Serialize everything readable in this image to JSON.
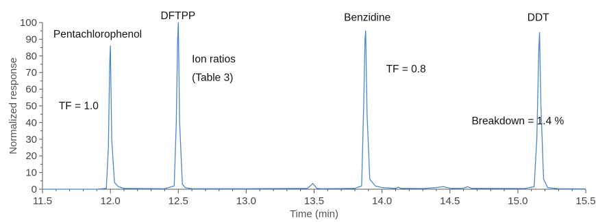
{
  "chart_data": {
    "type": "line",
    "xlabel": "Time (min)",
    "ylabel": "Normalized response",
    "xlim": [
      11.5,
      15.5
    ],
    "ylim": [
      0,
      100
    ],
    "xticks": [
      "11.5",
      "12.0",
      "12.5",
      "13.0",
      "13.5",
      "14.0",
      "14.5",
      "15.0",
      "15.5"
    ],
    "yticks": [
      "0",
      "10",
      "20",
      "30",
      "40",
      "50",
      "60",
      "70",
      "80",
      "90",
      "100"
    ],
    "grid": false,
    "line_color": "#4a86c8",
    "series": [
      {
        "x": [
          11.5,
          11.9,
          11.97,
          11.985,
          11.995,
          12.0,
          12.01,
          12.03,
          12.06,
          12.1,
          12.4,
          12.47,
          12.485,
          12.495,
          12.5,
          12.51,
          12.53,
          12.55,
          12.6,
          13.0,
          13.45,
          13.48,
          13.49,
          13.5,
          13.52,
          13.55,
          13.8,
          13.85,
          13.865,
          13.875,
          13.88,
          13.89,
          13.91,
          13.95,
          14.0,
          14.1,
          14.12,
          14.14,
          14.3,
          14.4,
          14.45,
          14.48,
          14.51,
          14.6,
          14.63,
          14.66,
          15.05,
          15.12,
          15.14,
          15.155,
          15.16,
          15.17,
          15.19,
          15.22,
          15.3,
          15.5
        ],
        "y": [
          0,
          0,
          0.5,
          25,
          75,
          86,
          30,
          4,
          1.5,
          0.5,
          0.3,
          2,
          40,
          90,
          100,
          40,
          3,
          1,
          0.3,
          0.3,
          0.5,
          2.5,
          3.5,
          2.5,
          0.5,
          0.3,
          0.5,
          2,
          50,
          90,
          95,
          45,
          6,
          2,
          1,
          0.5,
          1.2,
          0.5,
          0.4,
          1,
          1.6,
          1,
          0.5,
          0.6,
          1.5,
          0.5,
          0.4,
          1.5,
          30,
          85,
          94,
          50,
          6,
          1,
          0.3,
          0.2
        ]
      }
    ],
    "annotations": [
      {
        "text": "Pentachlorophenol",
        "x": 11.58,
        "y": 91
      },
      {
        "text": "DFTPP",
        "x": 12.37,
        "y": 102
      },
      {
        "text": "Benzidine",
        "x": 13.72,
        "y": 101
      },
      {
        "text": "DDT",
        "x": 15.07,
        "y": 101
      },
      {
        "text": "Ion ratios",
        "x": 12.6,
        "y": 76
      },
      {
        "text": "(Table 3)",
        "x": 12.6,
        "y": 65
      },
      {
        "text": "TF = 1.0",
        "x": 11.62,
        "y": 48
      },
      {
        "text": "TF = 0.8",
        "x": 14.03,
        "y": 70
      },
      {
        "text": "Breakdown = 1.4 %",
        "x": 14.66,
        "y": 39
      }
    ]
  }
}
